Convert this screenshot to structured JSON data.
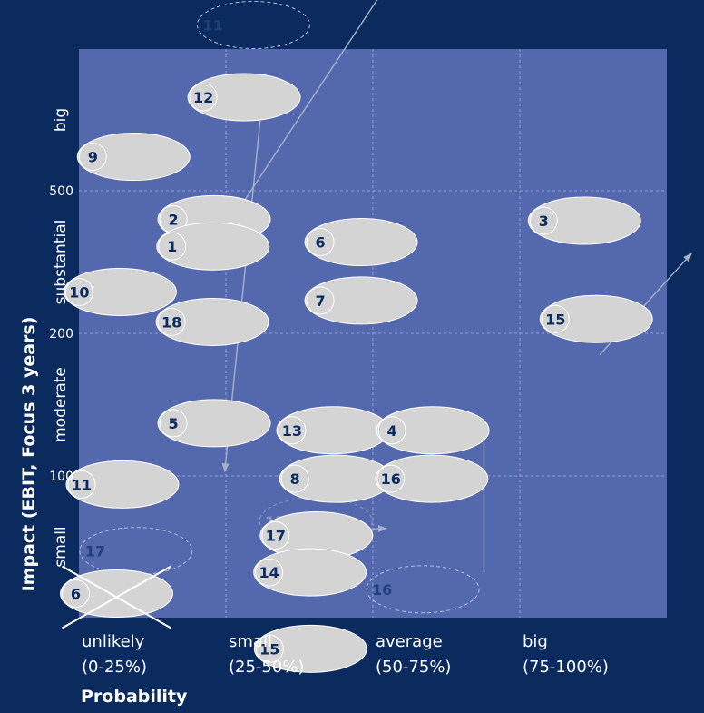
{
  "chart_data": {
    "type": "scatter",
    "xlabel": "Probability",
    "ylabel": "Impact  (EBIT, Focus 3 years)",
    "x_categories": [
      {
        "line1": "unlikely",
        "line2": "(0-25%)"
      },
      {
        "line1": "small",
        "line2": "(25-50%)"
      },
      {
        "line1": "average",
        "line2": "(50-75%)"
      },
      {
        "line1": "big",
        "line2": "(75-100%)"
      }
    ],
    "y_categories": [
      "small",
      "moderate",
      "substantial",
      "big"
    ],
    "y_ticks": [
      "100",
      "200",
      "500"
    ],
    "xlim": [
      0,
      100
    ],
    "ylim": [
      0,
      4
    ],
    "colors": {
      "background": "#0b2a5e",
      "plot": "#5468ad",
      "bubble": "#d4d4d4",
      "label": "#0b2a5e",
      "ghost_label": "#1d3f7a",
      "arrow": "#a9b0c9"
    },
    "risks": [
      {
        "id": "10",
        "x": 44.6,
        "y": 4.53,
        "ghost": true,
        "highlight": true
      },
      {
        "id": "11",
        "x": 29.7,
        "y": 4.17,
        "ghost": true
      },
      {
        "id": "12",
        "x": 28.1,
        "y": 3.66
      },
      {
        "id": "9",
        "x": 9.3,
        "y": 3.24
      },
      {
        "id": "2",
        "x": 23.0,
        "y": 2.8
      },
      {
        "id": "1",
        "x": 22.8,
        "y": 2.61
      },
      {
        "id": "6",
        "x": 48.0,
        "y": 2.64
      },
      {
        "id": "3",
        "x": 86.0,
        "y": 2.79
      },
      {
        "id": "10",
        "x": 7.0,
        "y": 2.29
      },
      {
        "id": "7",
        "x": 48.0,
        "y": 2.23
      },
      {
        "id": "18",
        "x": 22.7,
        "y": 2.08
      },
      {
        "id": "15",
        "x": 88.0,
        "y": 2.1
      },
      {
        "id": "5",
        "x": 23.0,
        "y": 1.37
      },
      {
        "id": "13",
        "x": 43.2,
        "y": 1.32
      },
      {
        "id": "4",
        "x": 60.2,
        "y": 1.32
      },
      {
        "id": "11",
        "x": 7.4,
        "y": 0.94
      },
      {
        "id": "8",
        "x": 43.7,
        "y": 0.98
      },
      {
        "id": "16",
        "x": 60.0,
        "y": 0.98
      },
      {
        "id": "15",
        "x": 40.3,
        "y": 0.68,
        "ghost": true,
        "faded": true
      },
      {
        "id": "17",
        "x": 9.7,
        "y": 0.47,
        "ghost": true
      },
      {
        "id": "17",
        "x": 40.4,
        "y": 0.58
      },
      {
        "id": "14",
        "x": 39.3,
        "y": 0.32
      },
      {
        "id": "16",
        "x": 58.5,
        "y": 0.2,
        "ghost": true
      },
      {
        "id": "6",
        "x": 6.4,
        "y": 0.17,
        "crossed": true
      },
      {
        "id": "15",
        "x": 39.4,
        "y": -0.22
      }
    ],
    "arrows": [
      {
        "from": [
          54.9,
          4.61
        ],
        "to": [
          21.9,
          2.54
        ]
      },
      {
        "from": [
          31.2,
          3.65
        ],
        "to": [
          24.8,
          1.03
        ]
      },
      {
        "from": [
          37.4,
          0.61
        ],
        "to": [
          52.3,
          0.63
        ]
      },
      {
        "from": [
          68.9,
          0.32
        ],
        "to": [
          68.9,
          1.35
        ]
      },
      {
        "from": [
          88.6,
          1.85
        ],
        "to": [
          104.2,
          2.56
        ]
      }
    ],
    "grid": true
  }
}
